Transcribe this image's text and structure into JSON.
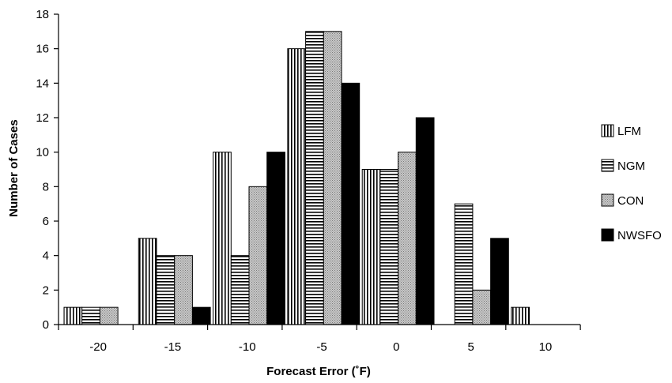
{
  "chart_data": {
    "type": "bar",
    "xlabel": "Forecast Error (˚F)",
    "ylabel": "Number of Cases",
    "ylim": [
      0,
      18
    ],
    "yticks": [
      0,
      2,
      4,
      6,
      8,
      10,
      12,
      14,
      16,
      18
    ],
    "categories": [
      "-20",
      "-15",
      "-10",
      "-5",
      "0",
      "5",
      "10"
    ],
    "series": [
      {
        "name": "LFM",
        "pattern": "vertical-stripes",
        "values": [
          1,
          5,
          10,
          16,
          9,
          0,
          1
        ]
      },
      {
        "name": "NGM",
        "pattern": "horizontal-stripes",
        "values": [
          1,
          4,
          4,
          17,
          9,
          7,
          0
        ]
      },
      {
        "name": "CON",
        "pattern": "gray-dotted",
        "values": [
          1,
          4,
          8,
          17,
          10,
          2,
          0
        ]
      },
      {
        "name": "NWSFO",
        "pattern": "solid-black",
        "values": [
          0,
          1,
          10,
          14,
          12,
          5,
          0
        ]
      }
    ],
    "legend_position": "right",
    "grid": false
  }
}
